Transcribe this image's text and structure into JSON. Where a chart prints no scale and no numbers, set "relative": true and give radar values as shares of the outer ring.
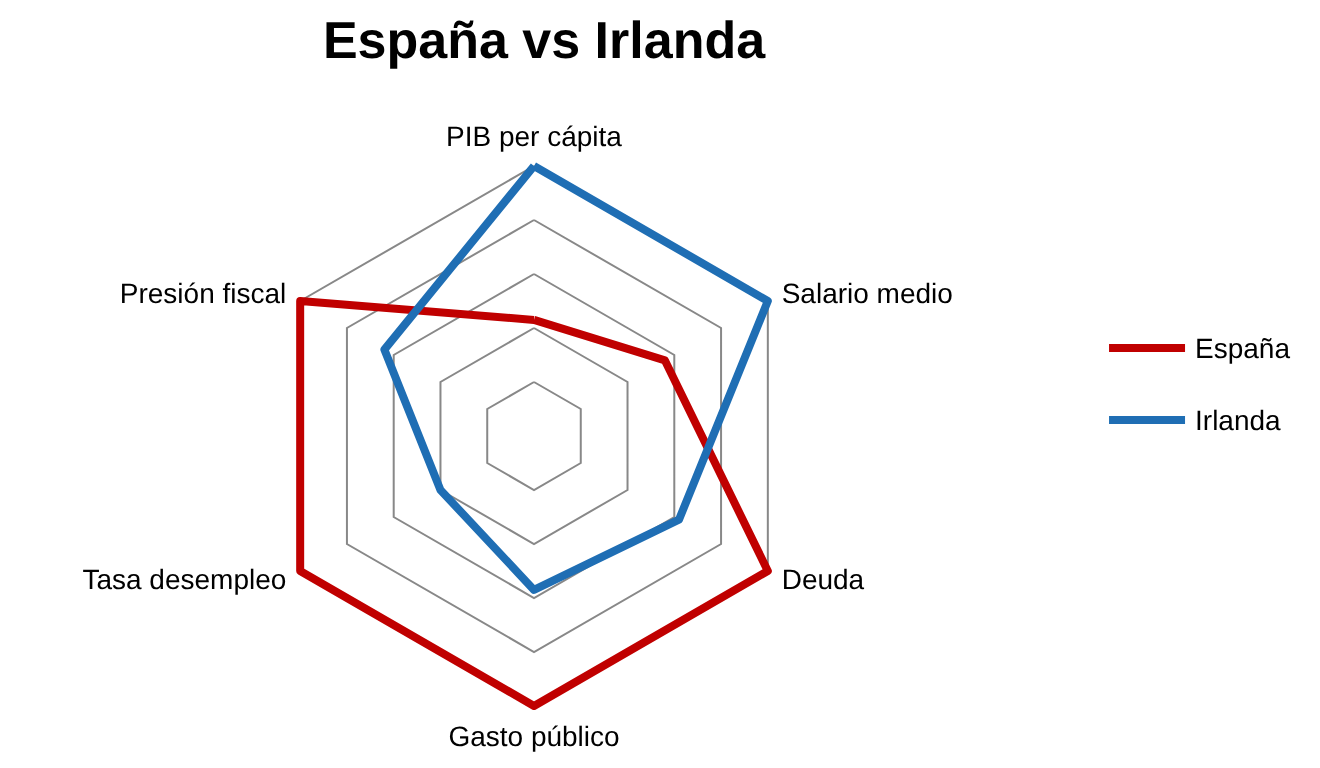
{
  "chart_data": {
    "type": "radar",
    "title": "España vs Irlanda",
    "relative": true,
    "categories": [
      "PIB per cápita",
      "Salario medio",
      "Deuda",
      "Gasto público",
      "Tasa desempleo",
      "Presión fiscal"
    ],
    "legend": "right",
    "marker": "none",
    "series": [
      {
        "name": "España",
        "color": "#c00000",
        "values": [
          0.43,
          0.56,
          1,
          1,
          1,
          1
        ]
      },
      {
        "name": "Irlanda",
        "color": "#1f6eb4",
        "values": [
          1,
          1,
          0.62,
          0.57,
          0.4,
          0.64
        ]
      }
    ]
  }
}
